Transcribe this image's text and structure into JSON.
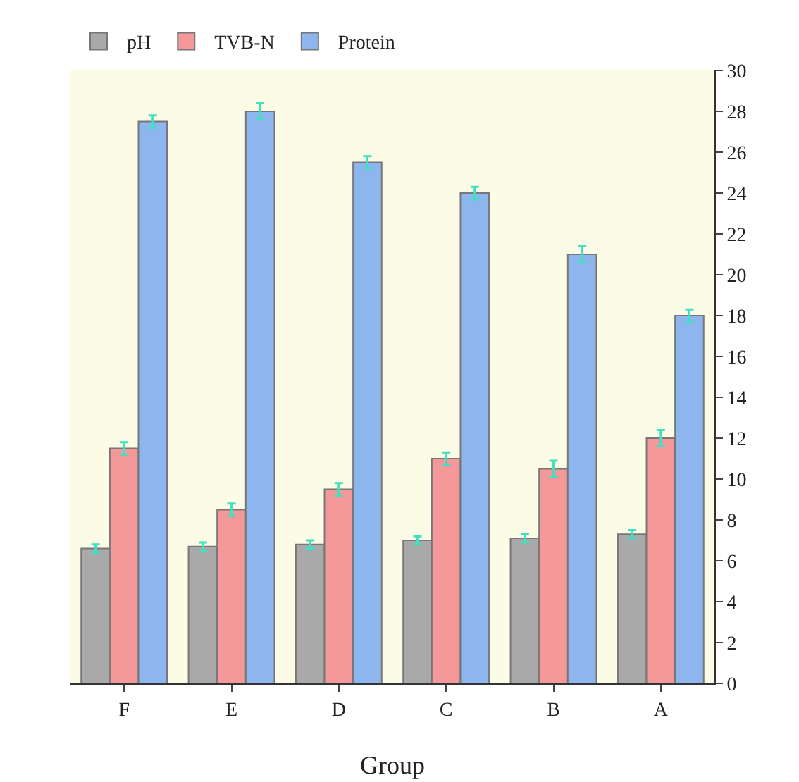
{
  "chart_data": {
    "type": "bar",
    "xlabel": "Group",
    "categories": [
      "F",
      "E",
      "D",
      "C",
      "B",
      "A"
    ],
    "series": [
      {
        "name": "pH",
        "color": "#a9a9a9",
        "values": [
          6.6,
          6.7,
          6.8,
          7.0,
          7.1,
          7.3
        ],
        "errors": [
          0.2,
          0.2,
          0.2,
          0.2,
          0.2,
          0.2
        ]
      },
      {
        "name": "TVB-N",
        "color": "#f4989a",
        "values": [
          11.5,
          8.5,
          9.5,
          11,
          10.5,
          12
        ],
        "errors": [
          0.3,
          0.3,
          0.3,
          0.3,
          0.4,
          0.4
        ]
      },
      {
        "name": "Protein",
        "color": "#8db5ee",
        "values": [
          27.5,
          28,
          25.5,
          24,
          21,
          18
        ],
        "errors": [
          0.3,
          0.4,
          0.3,
          0.3,
          0.4,
          0.3
        ]
      }
    ],
    "ylim": [
      0,
      30
    ],
    "yticks": [
      0,
      2,
      4,
      6,
      8,
      10,
      12,
      14,
      16,
      18,
      20,
      22,
      24,
      26,
      28,
      30
    ],
    "legend": "top left"
  }
}
